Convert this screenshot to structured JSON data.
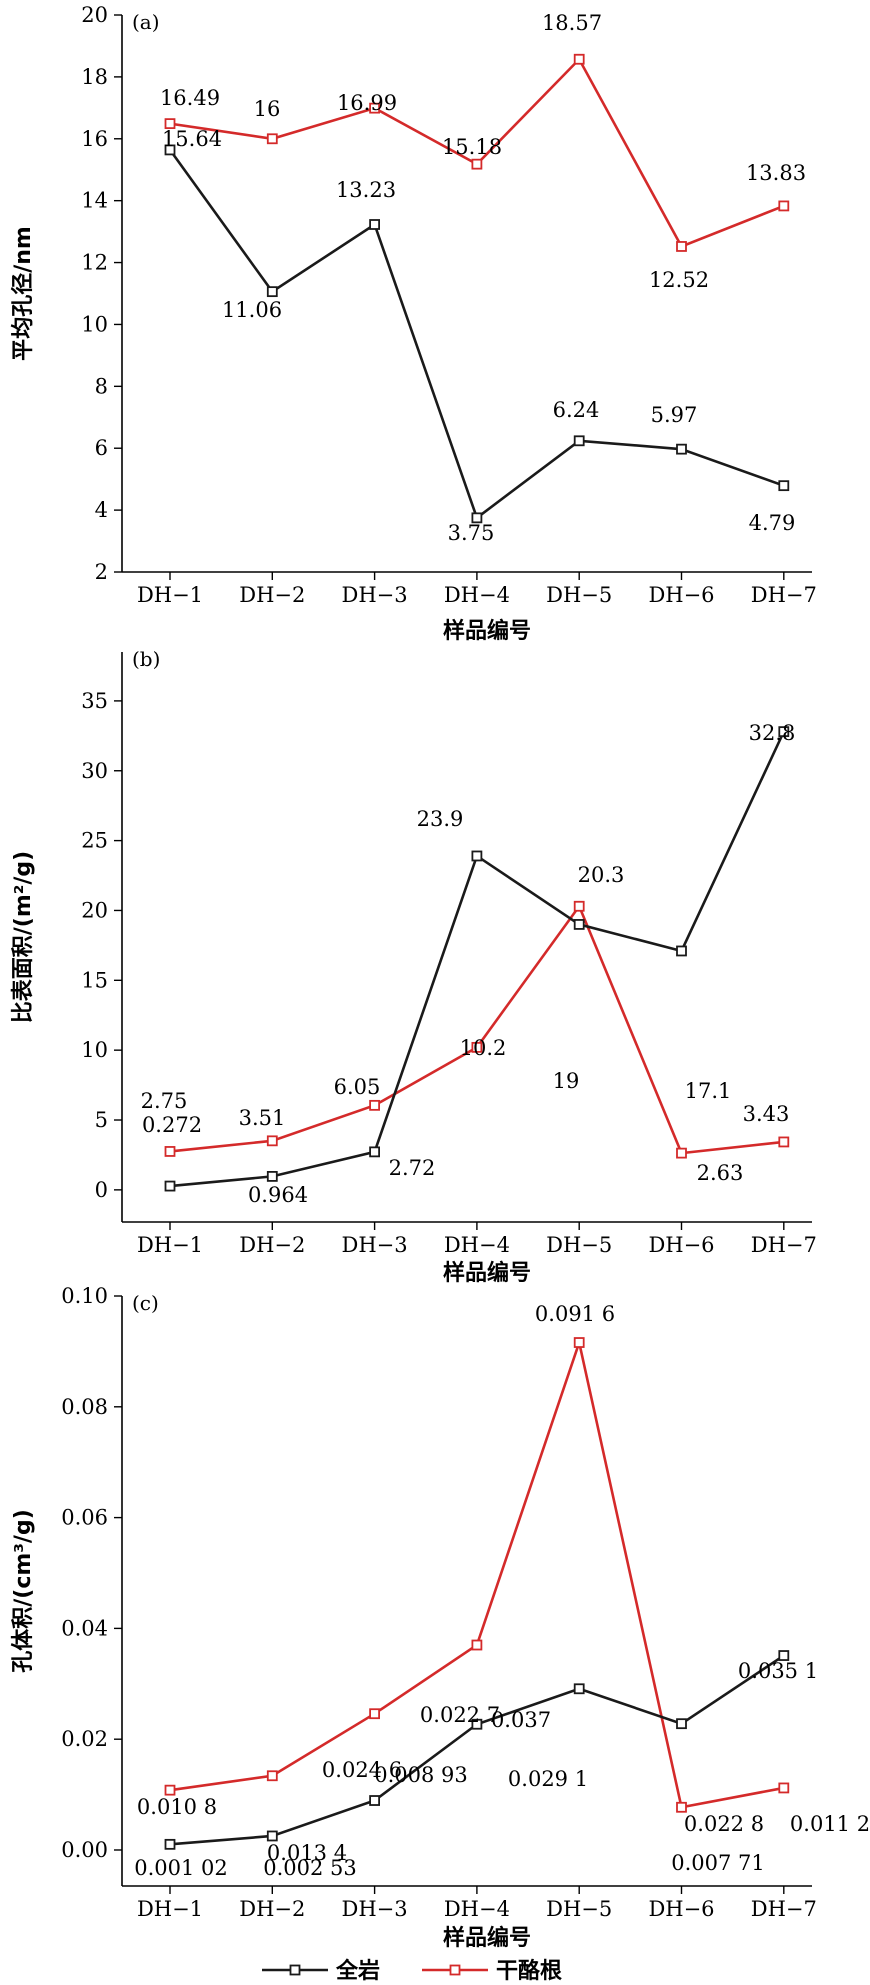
{
  "colors": {
    "whole_rock": "#1a1a1a",
    "kerogen": "#d42a2a"
  },
  "legend": {
    "whole_rock": "全岩",
    "kerogen": "干酪根"
  },
  "chart_data": [
    {
      "type": "line",
      "panel": "(a)",
      "xlabel": "样品编号",
      "ylabel": "平均孔径/nm",
      "categories": [
        "DH−1",
        "DH−2",
        "DH−3",
        "DH−4",
        "DH−5",
        "DH−6",
        "DH−7"
      ],
      "ylim": [
        2,
        20
      ],
      "yticks": [
        2,
        4,
        6,
        8,
        10,
        12,
        14,
        16,
        18,
        20
      ],
      "ytick_labels": [
        "2",
        "4",
        "6",
        "8",
        "10",
        "12",
        "14",
        "16",
        "18",
        "20"
      ],
      "series": [
        {
          "name": "全岩",
          "values": [
            15.64,
            11.06,
            13.23,
            3.75,
            6.24,
            5.97,
            4.79
          ],
          "labels": [
            "15.64",
            "11.06",
            "13.23",
            "3.75",
            "6.24",
            "5.97",
            "4.79"
          ]
        },
        {
          "name": "干酪根",
          "values": [
            16.49,
            16,
            16.99,
            15.18,
            18.57,
            12.52,
            13.83
          ],
          "labels": [
            "16.49",
            "16",
            "16.99",
            "15.18",
            "18.57",
            "12.52",
            "13.83"
          ]
        }
      ]
    },
    {
      "type": "line",
      "panel": "(b)",
      "xlabel": "样品编号",
      "ylabel": "比表面积/(m²/g)",
      "categories": [
        "DH−1",
        "DH−2",
        "DH−3",
        "DH−4",
        "DH−5",
        "DH−6",
        "DH−7"
      ],
      "ylim": [
        -2.3,
        38.5
      ],
      "yticks": [
        0,
        5,
        10,
        15,
        20,
        25,
        30,
        35
      ],
      "ytick_labels": [
        "0",
        "5",
        "10",
        "15",
        "20",
        "25",
        "30",
        "35"
      ],
      "series": [
        {
          "name": "全岩",
          "values": [
            0.272,
            0.964,
            2.72,
            23.9,
            19,
            17.1,
            32.8
          ],
          "labels": [
            "0.272",
            "0.964",
            "2.72",
            "23.9",
            "19",
            "17.1",
            "32.8"
          ]
        },
        {
          "name": "干酪根",
          "values": [
            2.75,
            3.51,
            6.05,
            10.2,
            20.3,
            2.63,
            3.43
          ],
          "labels": [
            "2.75",
            "3.51",
            "6.05",
            "10.2",
            "20.3",
            "2.63",
            "3.43"
          ]
        }
      ]
    },
    {
      "type": "line",
      "panel": "(c)",
      "xlabel": "样品编号",
      "ylabel": "孔体积/(cm³/g)",
      "categories": [
        "DH−1",
        "DH−2",
        "DH−3",
        "DH−4",
        "DH−5",
        "DH−6",
        "DH−7"
      ],
      "ylim": [
        -0.0065,
        0.1
      ],
      "yticks": [
        0,
        0.02,
        0.04,
        0.06,
        0.08,
        0.1
      ],
      "ytick_labels": [
        "0.00",
        "0.02",
        "0.04",
        "0.06",
        "0.08",
        "0.10"
      ],
      "series": [
        {
          "name": "全岩",
          "values": [
            0.00102,
            0.00253,
            0.00893,
            0.0227,
            0.0291,
            0.0228,
            0.0351
          ],
          "labels": [
            "0.001 02",
            "0.002 53",
            "0.008 93",
            "0.022 7",
            "0.029 1",
            "0.022 8",
            "0.035 1"
          ]
        },
        {
          "name": "干酪根",
          "values": [
            0.0108,
            0.0134,
            0.0246,
            0.037,
            0.0916,
            0.00771,
            0.0112
          ],
          "labels": [
            "0.010 8",
            "0.013 4",
            "0.024 6",
            "0.037",
            "0.091 6",
            "0.007 71",
            "0.011 2"
          ]
        }
      ]
    }
  ]
}
